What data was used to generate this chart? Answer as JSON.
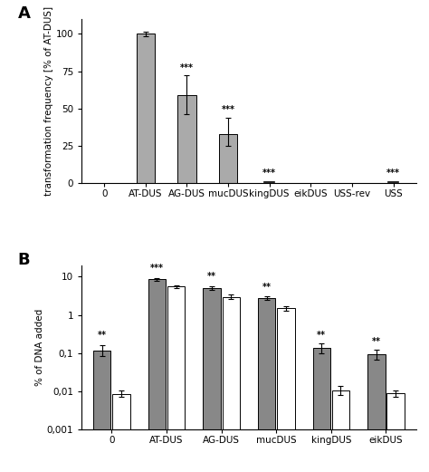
{
  "panel_A": {
    "categories": [
      "0",
      "AT-DUS",
      "AG-DUS",
      "mucDUS",
      "kingDUS",
      "eikDUS",
      "USS-rev",
      "USS"
    ],
    "values": [
      0.0,
      100,
      59,
      33,
      0.0,
      0.0,
      0.0,
      0.0
    ],
    "errors_up": [
      0,
      1.5,
      13,
      11,
      0,
      0,
      0,
      0
    ],
    "errors_down": [
      0,
      1.5,
      13,
      8,
      0,
      0,
      0,
      0
    ],
    "bar_color": "#aaaaaa",
    "ylabel": "transformation frequency [% of AT-DUS]",
    "ylim": [
      0,
      110
    ],
    "yticks": [
      0,
      25,
      50,
      75,
      100
    ],
    "significance": [
      "",
      "",
      "***",
      "***",
      "***",
      "",
      "",
      "***"
    ],
    "tiny_marks": [
      false,
      false,
      false,
      false,
      true,
      false,
      false,
      true
    ],
    "panel_label": "A"
  },
  "panel_B": {
    "categories": [
      "0",
      "AT-DUS",
      "AG-DUS",
      "mucDUS",
      "kingDUS",
      "eikDUS"
    ],
    "gray_values": [
      0.115,
      8.5,
      5.0,
      2.7,
      0.135,
      0.093
    ],
    "white_values": [
      0.0085,
      5.5,
      3.0,
      1.5,
      0.0105,
      0.0088
    ],
    "gray_errors_up": [
      0.045,
      0.8,
      0.55,
      0.32,
      0.045,
      0.03
    ],
    "gray_errors_down": [
      0.03,
      0.8,
      0.45,
      0.28,
      0.035,
      0.025
    ],
    "white_errors_up": [
      0.002,
      0.55,
      0.45,
      0.22,
      0.003,
      0.002
    ],
    "white_errors_down": [
      0.0015,
      0.45,
      0.35,
      0.18,
      0.0025,
      0.0015
    ],
    "gray_color": "#888888",
    "white_color": "#ffffff",
    "ylabel": "% of DNA added",
    "ylim": [
      0.001,
      20
    ],
    "yticks": [
      0.001,
      0.01,
      0.1,
      1,
      10
    ],
    "yticklabels": [
      "0,001",
      "0,01",
      "0,1",
      "1",
      "10"
    ],
    "significance": [
      "**",
      "***",
      "**",
      "**",
      "**",
      "**"
    ],
    "panel_label": "B"
  },
  "bar_edge_color": "#000000",
  "bar_linewidth": 0.7,
  "fig_bg": "#ffffff",
  "font_size": 7.5,
  "sig_font_size": 7,
  "label_font_size": 8
}
